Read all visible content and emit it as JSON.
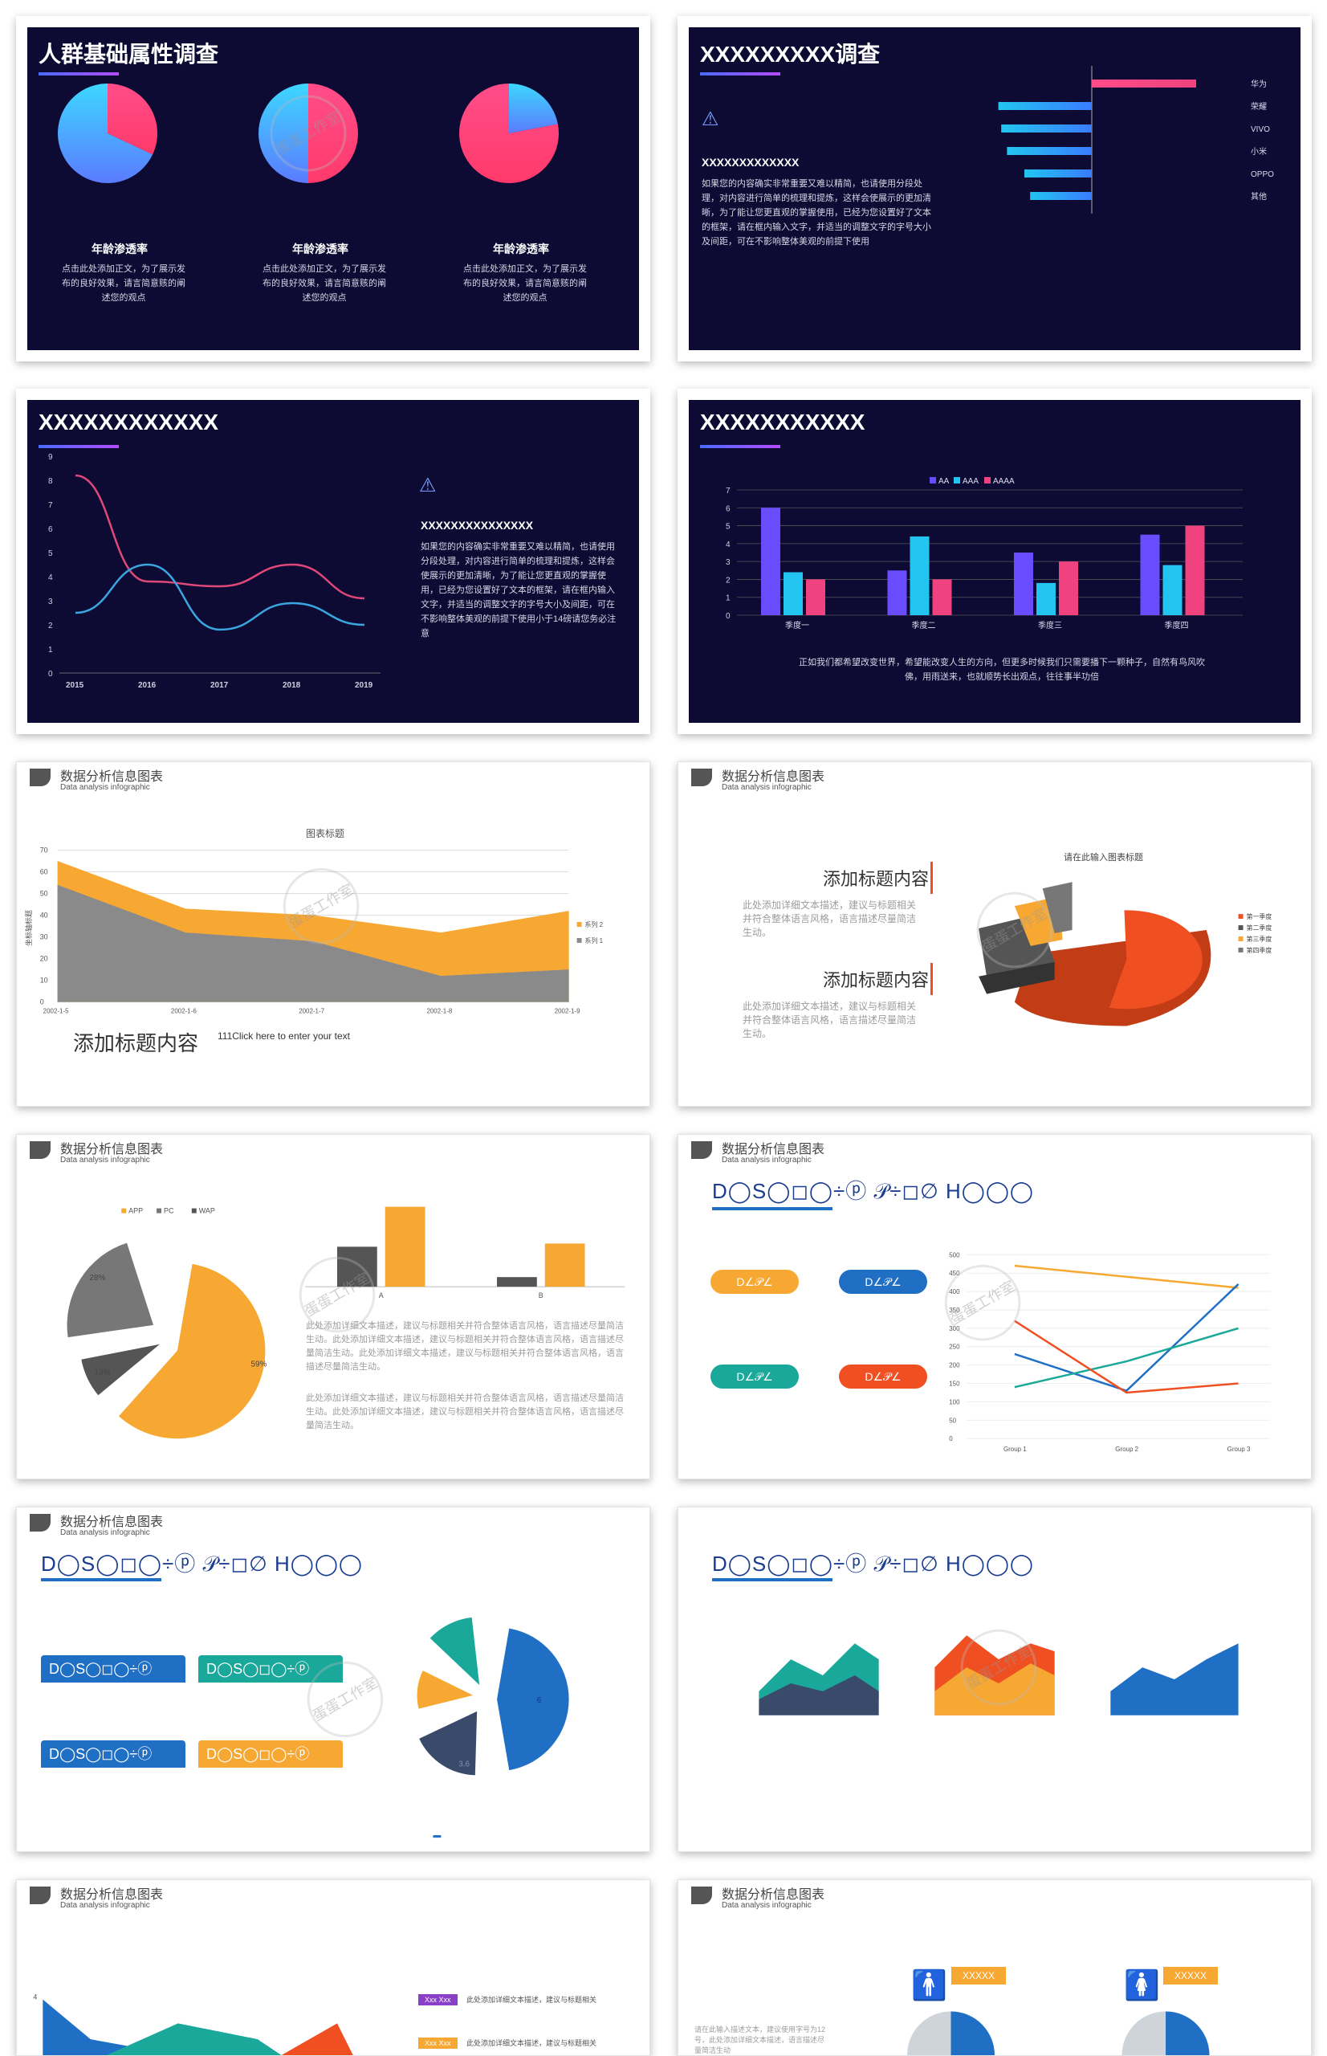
{
  "slide1": {
    "title": "人群基础属性调查",
    "pies": [
      {
        "label": "年龄渗透率",
        "desc": "点击此处添加正文，为了展示发布的良好效果，请言简意赅的阐述您的观点",
        "share": 0.32
      },
      {
        "label": "年龄渗透率",
        "desc": "点击此处添加正文，为了展示发布的良好效果，请言简意赅的阐述您的观点",
        "share": 0.5
      },
      {
        "label": "年龄渗透率",
        "desc": "点击此处添加正文，为了展示发布的良好效果，请言简意赅的阐述您的观点",
        "share": 0.22
      }
    ]
  },
  "slide2": {
    "title": "XXXXXXXXX调查",
    "subtitle": "XXXXXXXXXXXXX",
    "body": "如果您的内容确实非常重要又难以精简，也请使用分段处理，对内容进行简单的梳理和提炼，这样会使展示的更加清晰，为了能让您更直观的掌握使用，已经为您设置好了文本的框架，请在框内输入文字，并适当的调整文字的字号大小及间距，可在不影响整体美观的前提下使用",
    "chart_data": {
      "type": "bar",
      "categories": [
        "华为",
        "荣耀",
        "VIVO",
        "小米",
        "OPPO",
        "其他"
      ],
      "values": [
        100,
        98,
        96,
        92,
        80,
        76
      ]
    }
  },
  "slide3": {
    "title": "XXXXXXXXXXXX",
    "subtitle": "XXXXXXXXXXXXXXX",
    "body": "如果您的内容确实非常重要又难以精简，也请使用分段处理，对内容进行简单的梳理和提炼，这样会使展示的更加清晰，为了能让您更直观的掌握使用，已经为您设置好了文本的框架，请在框内输入文字，并适当的调整文字的字号大小及间距，可在不影响整体美观的前提下使用小于14磅请您务必注意",
    "chart_data": {
      "type": "line",
      "x": [
        "2015",
        "2016",
        "2017",
        "2018",
        "2019"
      ],
      "ylim": [
        0,
        9
      ],
      "yticks": [
        "0",
        "1",
        "2",
        "3",
        "4",
        "5",
        "6",
        "7",
        "8",
        "9"
      ],
      "series": [
        {
          "values": [
            8.2,
            3.8,
            3.6,
            4.5,
            3.1
          ],
          "color": "#e0487a"
        },
        {
          "values": [
            2.5,
            4.5,
            1.8,
            2.9,
            2.0
          ],
          "color": "#3aa6e0"
        }
      ]
    }
  },
  "slide4": {
    "title": "XXXXXXXXXXX",
    "caption": "正如我们都希望改变世界，希望能改变人生的方向，但更多时候我们只需要播下一颗种子，自然有鸟风吹佛，用雨送来，也就顺势长出观点，往往事半功倍",
    "chart_data": {
      "type": "bar",
      "categories": [
        "季度一",
        "季度二",
        "季度三",
        "季度四"
      ],
      "ylim": [
        0,
        7
      ],
      "yticks": [
        "0",
        "1",
        "2",
        "3",
        "4",
        "5",
        "6",
        "7"
      ],
      "series": [
        {
          "name": "AA",
          "values": [
            6,
            2.5,
            3.5,
            4.5
          ],
          "color": "#6a4cff"
        },
        {
          "name": "AAA",
          "values": [
            2.4,
            4.4,
            1.8,
            2.8
          ],
          "color": "#22c5f0"
        },
        {
          "name": "AAAA",
          "values": [
            2,
            2,
            3,
            5
          ],
          "color": "#f0427e"
        }
      ]
    }
  },
  "slide5": {
    "header": "数据分析信息图表",
    "header_sub": "Data analysis infographic",
    "chart_title": "图表标题",
    "ylabel": "坐标轴标题",
    "heading": "添加标题内容",
    "note": "111Click here to enter your text",
    "chart_data": {
      "type": "area",
      "x": [
        "2002-1-5",
        "2002-1-6",
        "2002-1-7",
        "2002-1-8",
        "2002-1-9"
      ],
      "ylim": [
        0,
        70
      ],
      "yticks": [
        "0",
        "10",
        "20",
        "30",
        "40",
        "50",
        "60",
        "70"
      ],
      "series": [
        {
          "name": "系列 2",
          "values": [
            65,
            43,
            40,
            32,
            42
          ],
          "color": "#f7a833"
        },
        {
          "name": "系列 1",
          "values": [
            54,
            32,
            28,
            12,
            15
          ],
          "color": "#8a8a8a"
        }
      ]
    }
  },
  "slide6": {
    "header": "数据分析信息图表",
    "header_sub": "Data analysis infographic",
    "chart_title": "请在此输入图表标题",
    "heading1": "添加标题内容",
    "text1": "此处添加详细文本描述，建议与标题相关并符合整体语言风格，语言描述尽量简洁生动。",
    "heading2": "添加标题内容",
    "text2": "此处添加详细文本描述，建议与标题相关并符合整体语言风格，语言描述尽量简洁生动。",
    "legend": [
      "第一季度",
      "第二季度",
      "第三季度",
      "第四季度"
    ],
    "colors": [
      "#f04f22",
      "#555555",
      "#f7a833",
      "#777777"
    ]
  },
  "slide7": {
    "header": "数据分析信息图表",
    "header_sub": "Data analysis infographic",
    "legend": [
      "APP",
      "PC",
      "WAP"
    ],
    "colors": [
      "#f7a833",
      "#777777",
      "#555555"
    ],
    "pie_labels": [
      "28%",
      "13%",
      "59%"
    ],
    "bar_labels": [
      "A",
      "B"
    ],
    "text1": "此处添加详细文本描述，建议与标题相关并符合整体语言风格，语言描述尽量简洁生动。此处添加详细文本描述，建议与标题相关并符合整体语言风格，语言描述尽量简洁生动。此处添加详细文本描述，建议与标题相关并符合整体语言风格，语言描述尽量简洁生动。",
    "text2": "此处添加详细文本描述，建议与标题相关并符合整体语言风格，语言描述尽量简洁生动。此处添加详细文本描述，建议与标题相关并符合整体语言风格，语言描述尽量简洁生动。"
  },
  "slide8": {
    "header": "数据分析信息图表",
    "header_sub": "Data analysis infographic",
    "glyph_title": "D◯S◯◻◯÷ⓟ 𝒫÷◻∅ H◯◯◯",
    "pills": [
      "D∠𝒫∠",
      "D∠𝒫∠",
      "D∠𝒫∠",
      "D∠𝒫∠"
    ],
    "pill_colors": [
      "#f7a833",
      "#1f6fc5",
      "#1aa89a",
      "#f04f22"
    ],
    "x_labels": [
      "Group 1",
      "Group 2",
      "Group 3"
    ],
    "yticks": [
      "0",
      "50",
      "100",
      "150",
      "200",
      "250",
      "300",
      "350",
      "400",
      "450",
      "500"
    ]
  },
  "slide9": {
    "header": "数据分析信息图表",
    "header_sub": "Data analysis infographic",
    "glyph_title": "D◯S◯◻◯÷ⓟ 𝒫÷◻∅ H◯◯◯",
    "cards": [
      "D◯S◯◻◯÷ⓟ",
      "D◯S◯◻◯÷ⓟ",
      "D◯S◯◻◯÷ⓟ",
      "D◯S◯◻◯÷ⓟ"
    ],
    "card_colors": [
      "#1f6fc5",
      "#1aa89a",
      "#1f6fc5",
      "#f7a833"
    ],
    "pie_values": [
      "3.6",
      "6"
    ]
  },
  "slide10": {
    "glyph_title": "D◯S◯◻◯÷ⓟ 𝒫÷◻∅ H◯◯◯"
  },
  "slide11": {
    "header": "数据分析信息图表",
    "header_sub": "Data analysis infographic",
    "tags": [
      "Xxx Xxx",
      "Xxx Xxx"
    ],
    "tag_text": "此处添加详细文本描述，建议与标题相关"
  },
  "slide12": {
    "header": "数据分析信息图表",
    "header_sub": "Data analysis infographic",
    "labels": [
      "XXXXX",
      "XXXXX"
    ],
    "desc": "请在此输入描述文本，建议使用字号为12号，此处添加详细文本描述，语言描述尽量简洁生动"
  },
  "watermark": "蛋蛋工作室"
}
